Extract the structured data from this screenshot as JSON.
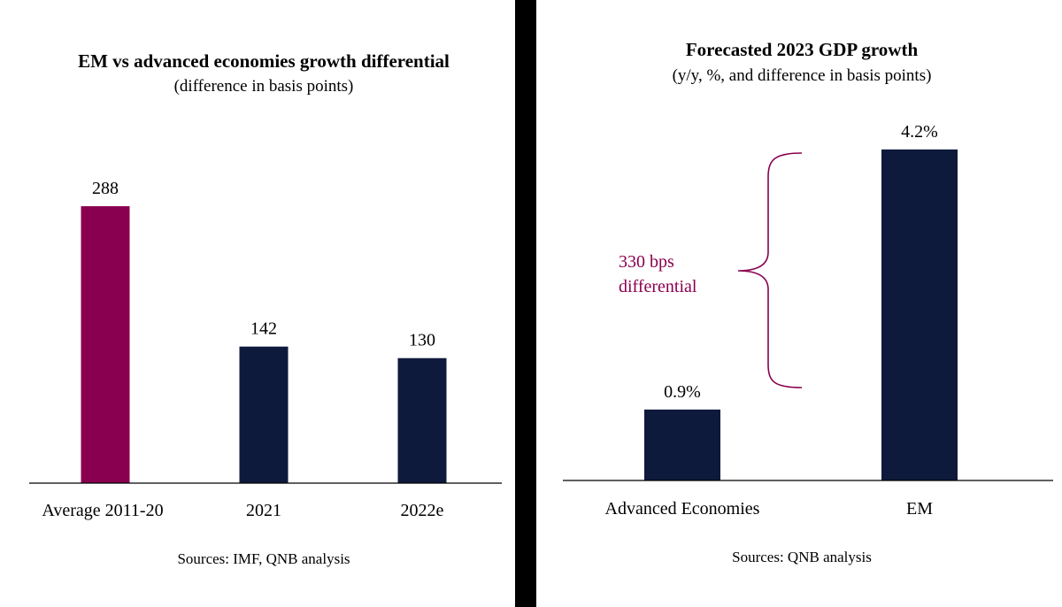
{
  "chart_data": [
    {
      "type": "bar",
      "title": "EM vs advanced economies growth differential",
      "subtitle": "(difference in basis points)",
      "categories": [
        "Average 2011-20",
        "2021",
        "2022e"
      ],
      "values": [
        288,
        142,
        130
      ],
      "data_labels": [
        "288",
        "142",
        "130"
      ],
      "colors": [
        "#8a0050",
        "#0e1a3c",
        "#0e1a3c"
      ],
      "ylim": [
        0,
        300
      ],
      "grid": false,
      "source": "Sources: IMF, QNB analysis"
    },
    {
      "type": "bar",
      "title": "Forecasted 2023 GDP growth",
      "subtitle": "(y/y, %, and difference in basis points)",
      "categories": [
        "Advanced Economies",
        "EM"
      ],
      "values": [
        0.9,
        4.2
      ],
      "data_labels": [
        "0.9%",
        "4.2%"
      ],
      "colors": [
        "#0e1a3c",
        "#0e1a3c"
      ],
      "ylim": [
        0,
        4.3
      ],
      "grid": false,
      "annotation": {
        "lines": [
          "330 bps",
          "differential"
        ],
        "color": "#8a0050"
      },
      "source": "Sources: QNB analysis"
    }
  ]
}
